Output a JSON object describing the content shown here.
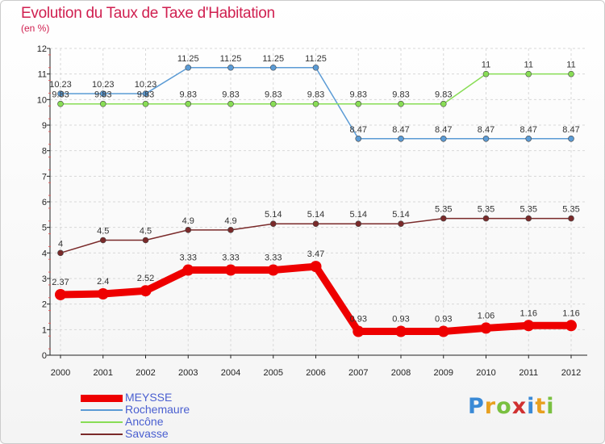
{
  "title": "Evolution du Taux de Taxe d'Habitation",
  "unit_label": "(en %)",
  "logo_text": "Proxiti",
  "chart_data": {
    "type": "line",
    "title": "Evolution du Taux de Taxe d'Habitation",
    "ylabel": "(en %)",
    "xlabel": "",
    "x": [
      "2000",
      "2001",
      "2002",
      "2003",
      "2004",
      "2005",
      "2006",
      "2007",
      "2008",
      "2009",
      "2010",
      "2011",
      "2012"
    ],
    "ylim": [
      0,
      12
    ],
    "yticks": [
      "0",
      "1",
      "2",
      "3",
      "4",
      "5",
      "6",
      "7",
      "8",
      "9",
      "10",
      "11",
      "12"
    ],
    "grid": true,
    "legend": "bottom-left",
    "series": [
      {
        "name": "MEYSSE",
        "color": "#ee0000",
        "values": [
          2.37,
          2.4,
          2.52,
          3.33,
          3.33,
          3.33,
          3.47,
          0.93,
          0.93,
          0.93,
          1.06,
          1.16,
          1.16
        ],
        "labels": [
          "2.37",
          "2.4",
          "2.52",
          "3.33",
          "3.33",
          "3.33",
          "3.47",
          "0.93",
          "0.93",
          "0.93",
          "1.06",
          "1.16",
          "1.16"
        ]
      },
      {
        "name": "Rochemaure",
        "color": "#5b9bd5",
        "values": [
          10.23,
          10.23,
          10.23,
          11.25,
          11.25,
          11.25,
          11.25,
          8.47,
          8.47,
          8.47,
          8.47,
          8.47,
          8.47
        ],
        "labels": [
          "10.23",
          "10.23",
          "10.23",
          "11.25",
          "11.25",
          "11.25",
          "11.25",
          "8.47",
          "8.47",
          "8.47",
          "8.47",
          "8.47",
          "8.47"
        ]
      },
      {
        "name": "Ancône",
        "color": "#88dd55",
        "values": [
          9.83,
          9.83,
          9.83,
          9.83,
          9.83,
          9.83,
          9.83,
          9.83,
          9.83,
          9.83,
          11,
          11,
          11
        ],
        "labels": [
          "9.83",
          "9.83",
          "9.83",
          "9.83",
          "9.83",
          "9.83",
          "9.83",
          "9.83",
          "9.83",
          "9.83",
          "11",
          "11",
          "11"
        ]
      },
      {
        "name": "Savasse",
        "color": "#7a2a2a",
        "values": [
          4,
          4.5,
          4.5,
          4.9,
          4.9,
          5.14,
          5.14,
          5.14,
          5.14,
          5.35,
          5.35,
          5.35,
          5.35
        ],
        "labels": [
          "4",
          "4.5",
          "4.5",
          "4.9",
          "4.9",
          "5.14",
          "5.14",
          "5.14",
          "5.14",
          "5.35",
          "5.35",
          "5.35",
          "5.35"
        ]
      }
    ]
  }
}
